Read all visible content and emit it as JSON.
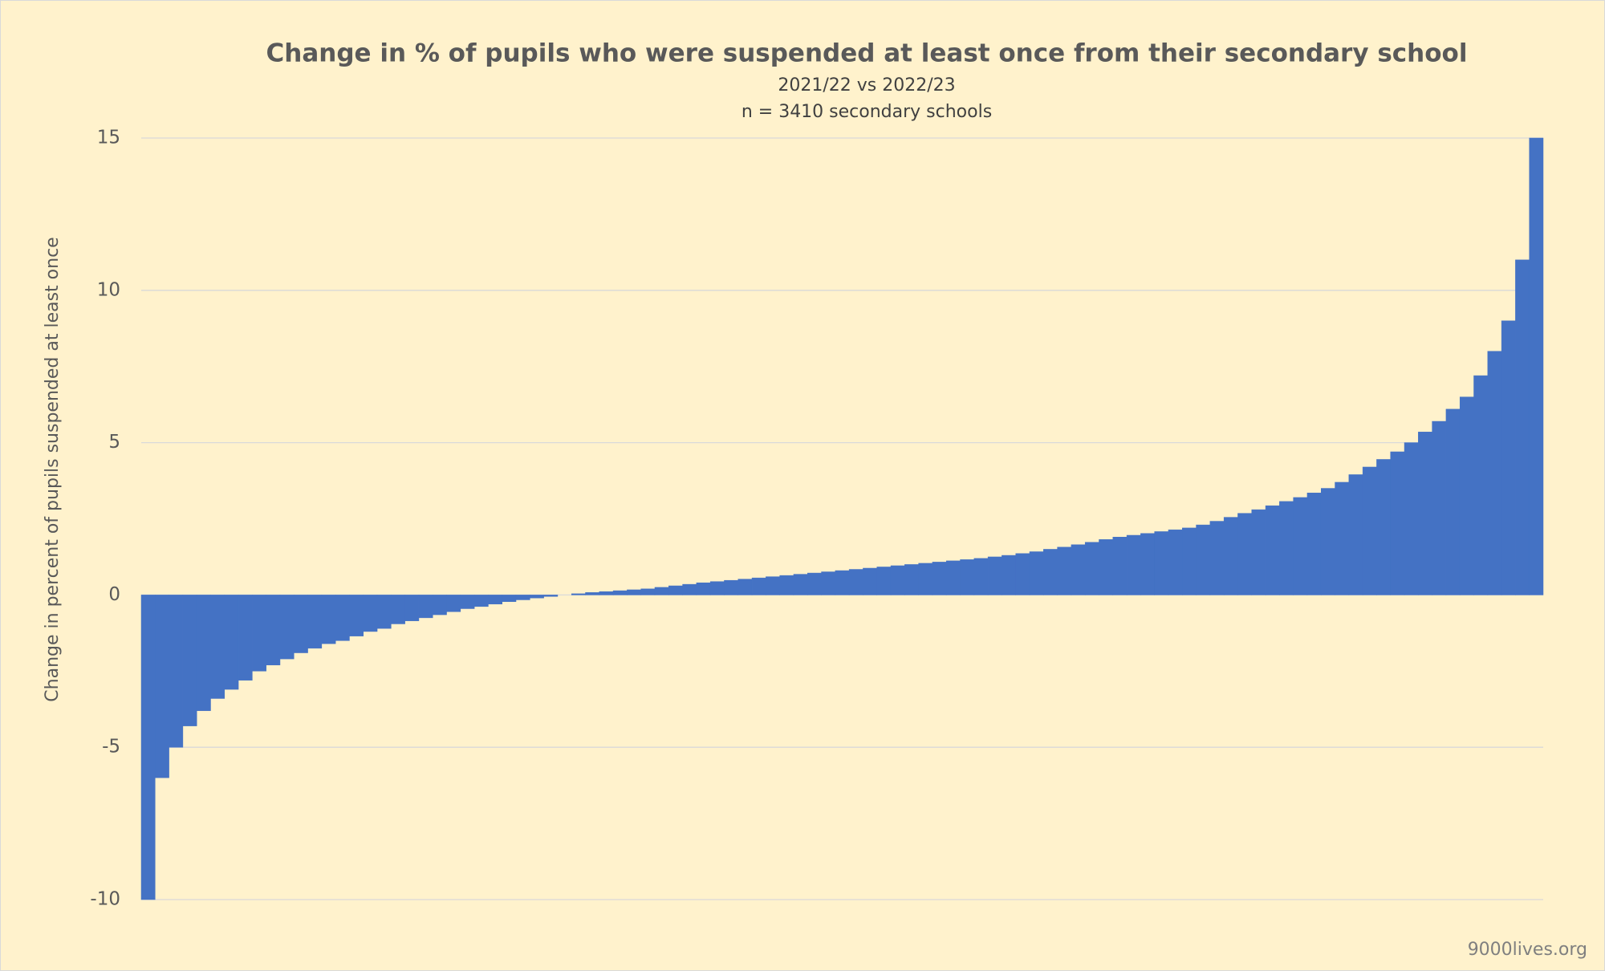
{
  "chart_data": {
    "type": "bar",
    "title": "Change in % of pupils who were suspended at least once from their secondary school",
    "subtitle": [
      "2021/22 vs 2022/23",
      "n = 3410 secondary schools"
    ],
    "y_label": "Change in percent of pupils suspended at least once",
    "source": "9000lives.org",
    "color": "#4472c4",
    "grid": true,
    "ylim": [
      -10,
      15
    ],
    "yticks": [
      -10,
      -5,
      0,
      5,
      10,
      15
    ],
    "values": [
      -10,
      -6,
      -5,
      -4.3,
      -3.8,
      -3.4,
      -3.1,
      -2.8,
      -2.5,
      -2.3,
      -2.1,
      -1.9,
      -1.75,
      -1.6,
      -1.5,
      -1.35,
      -1.2,
      -1.1,
      -0.95,
      -0.85,
      -0.75,
      -0.65,
      -0.55,
      -0.45,
      -0.38,
      -0.3,
      -0.22,
      -0.16,
      -0.1,
      -0.05,
      0,
      0.04,
      0.08,
      0.11,
      0.14,
      0.17,
      0.2,
      0.25,
      0.3,
      0.35,
      0.4,
      0.44,
      0.48,
      0.52,
      0.56,
      0.6,
      0.64,
      0.68,
      0.72,
      0.76,
      0.8,
      0.84,
      0.88,
      0.92,
      0.96,
      1.0,
      1.04,
      1.08,
      1.12,
      1.16,
      1.2,
      1.25,
      1.3,
      1.36,
      1.42,
      1.5,
      1.57,
      1.65,
      1.73,
      1.82,
      1.9,
      1.96,
      2.02,
      2.08,
      2.14,
      2.2,
      2.3,
      2.42,
      2.55,
      2.68,
      2.8,
      2.93,
      3.07,
      3.2,
      3.35,
      3.5,
      3.7,
      3.95,
      4.2,
      4.45,
      4.7,
      5.0,
      5.35,
      5.7,
      6.1,
      6.5,
      7.2,
      8.0,
      9.0,
      11,
      15
    ]
  }
}
